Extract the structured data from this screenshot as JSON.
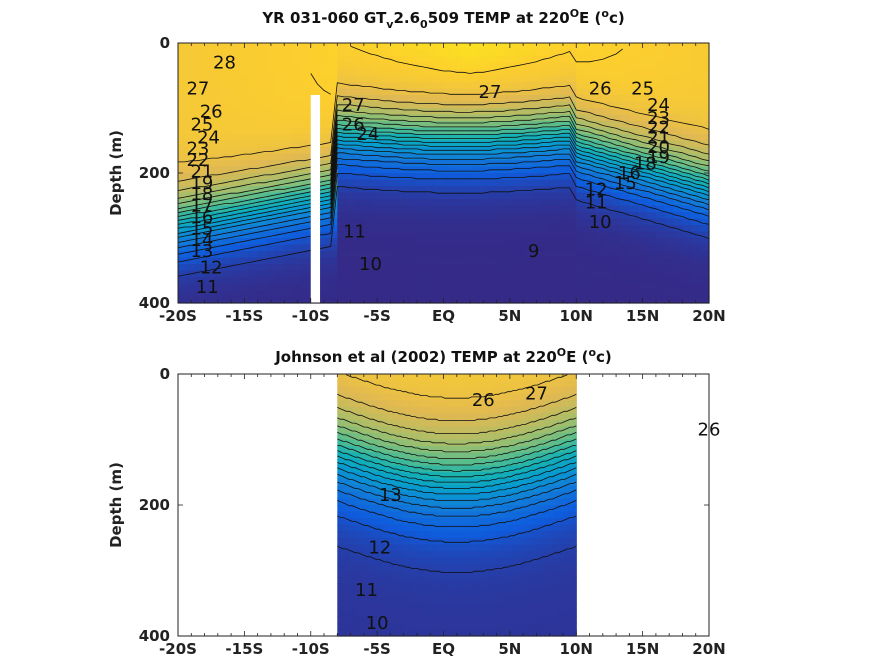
{
  "chart_data": [
    {
      "type": "heatmap",
      "title": "YR 031-060 GT_v2.6_0509 TEMP at 220°E (°c)",
      "title_parts": {
        "pre": "YR 031-060 GT",
        "sub1": "v",
        "mid": "2.6",
        "sub2": "0",
        "post": "509 TEMP at 220",
        "sup1": "O",
        "post2": "E (",
        "sup2": "o",
        "post3": "c)"
      },
      "ylabel": "Depth (m)",
      "xlabel": "",
      "xlim": [
        -20,
        20
      ],
      "ylim": [
        400,
        0
      ],
      "x_ticks": [
        -20,
        -15,
        -10,
        -5,
        0,
        5,
        10,
        15,
        20
      ],
      "x_tick_labels": [
        "-20S",
        "-15S",
        "-10S",
        "-5S",
        "EQ",
        "5N",
        "10N",
        "15N",
        "20N"
      ],
      "y_ticks": [
        0,
        200,
        400
      ],
      "y_tick_labels": [
        "0",
        "200",
        "400"
      ],
      "data_extent_x": [
        -20,
        20
      ],
      "contour_levels": [
        9,
        10,
        11,
        12,
        13,
        14,
        15,
        16,
        17,
        18,
        19,
        20,
        21,
        22,
        23,
        24,
        25,
        26,
        27,
        28
      ],
      "colormap": "parula",
      "color_range": [
        9,
        29
      ],
      "missing_strip_x": [
        -10,
        -9.3
      ],
      "missing_strip_depth": [
        80,
        400
      ],
      "contour_labels": [
        {
          "text": "28",
          "x": -16.5,
          "y": 30
        },
        {
          "text": "27",
          "x": -18.5,
          "y": 70
        },
        {
          "text": "26",
          "x": -17.5,
          "y": 105
        },
        {
          "text": "25",
          "x": -18.2,
          "y": 125
        },
        {
          "text": "24",
          "x": -17.7,
          "y": 145
        },
        {
          "text": "23",
          "x": -18.5,
          "y": 162
        },
        {
          "text": "22",
          "x": -18.5,
          "y": 180
        },
        {
          "text": "21",
          "x": -18.2,
          "y": 198
        },
        {
          "text": "19",
          "x": -18.2,
          "y": 215
        },
        {
          "text": "18",
          "x": -18.2,
          "y": 232
        },
        {
          "text": "17",
          "x": -18.2,
          "y": 250
        },
        {
          "text": "16",
          "x": -18.2,
          "y": 268
        },
        {
          "text": "15",
          "x": -18.2,
          "y": 285
        },
        {
          "text": "14",
          "x": -18.2,
          "y": 303
        },
        {
          "text": "13",
          "x": -18.2,
          "y": 320
        },
        {
          "text": "12",
          "x": -17.5,
          "y": 345
        },
        {
          "text": "11",
          "x": -17.8,
          "y": 375
        },
        {
          "text": "27",
          "x": -6.8,
          "y": 95
        },
        {
          "text": "26",
          "x": -6.8,
          "y": 125
        },
        {
          "text": "24",
          "x": -5.7,
          "y": 140
        },
        {
          "text": "11",
          "x": -6.7,
          "y": 290
        },
        {
          "text": "10",
          "x": -5.5,
          "y": 340
        },
        {
          "text": "27",
          "x": 3.5,
          "y": 75
        },
        {
          "text": "26",
          "x": 11.8,
          "y": 70
        },
        {
          "text": "25",
          "x": 15.0,
          "y": 70
        },
        {
          "text": "24",
          "x": 16.2,
          "y": 95
        },
        {
          "text": "23",
          "x": 16.2,
          "y": 115
        },
        {
          "text": "22",
          "x": 16.2,
          "y": 130
        },
        {
          "text": "21",
          "x": 16.2,
          "y": 145
        },
        {
          "text": "20",
          "x": 16.2,
          "y": 160
        },
        {
          "text": "19",
          "x": 16.2,
          "y": 175
        },
        {
          "text": "18",
          "x": 15.2,
          "y": 185
        },
        {
          "text": "16",
          "x": 14.0,
          "y": 200
        },
        {
          "text": "15",
          "x": 13.7,
          "y": 215
        },
        {
          "text": "12",
          "x": 11.5,
          "y": 225
        },
        {
          "text": "11",
          "x": 11.5,
          "y": 245
        },
        {
          "text": "10",
          "x": 11.8,
          "y": 275
        },
        {
          "text": "9",
          "x": 6.8,
          "y": 320
        }
      ]
    },
    {
      "type": "heatmap",
      "title": "Johnson et al (2002) TEMP at 220°E (°c)",
      "title_parts": {
        "pre": "Johnson et al (2002) TEMP at 220",
        "sup1": "O",
        "post2": "E (",
        "sup2": "o",
        "post3": "c)"
      },
      "ylabel": "Depth (m)",
      "xlabel": "",
      "xlim": [
        -20,
        20
      ],
      "ylim": [
        400,
        0
      ],
      "x_ticks": [
        -20,
        -15,
        -10,
        -5,
        0,
        5,
        10,
        15,
        20
      ],
      "x_tick_labels": [
        "-20S",
        "-15S",
        "-10S",
        "-5S",
        "EQ",
        "5N",
        "10N",
        "15N",
        "20N"
      ],
      "y_ticks": [
        0,
        200,
        400
      ],
      "y_tick_labels": [
        "0",
        "200",
        "400"
      ],
      "data_extent_x": [
        -8,
        10
      ],
      "contour_levels": [
        9,
        10,
        11,
        12,
        13,
        14,
        15,
        16,
        17,
        18,
        19,
        20,
        21,
        22,
        23,
        24,
        25,
        26,
        27
      ],
      "colormap": "parula",
      "color_range": [
        9,
        29
      ],
      "contour_labels": [
        {
          "text": "26",
          "x": 26,
          "y": 85
        },
        {
          "text": "27",
          "x": 7.0,
          "y": 30
        },
        {
          "text": "26",
          "x": 3.0,
          "y": 40
        },
        {
          "text": "13",
          "x": -4.0,
          "y": 185
        },
        {
          "text": "12",
          "x": -4.8,
          "y": 265
        },
        {
          "text": "11",
          "x": -5.8,
          "y": 330
        },
        {
          "text": "10",
          "x": -5.0,
          "y": 380
        }
      ]
    }
  ]
}
